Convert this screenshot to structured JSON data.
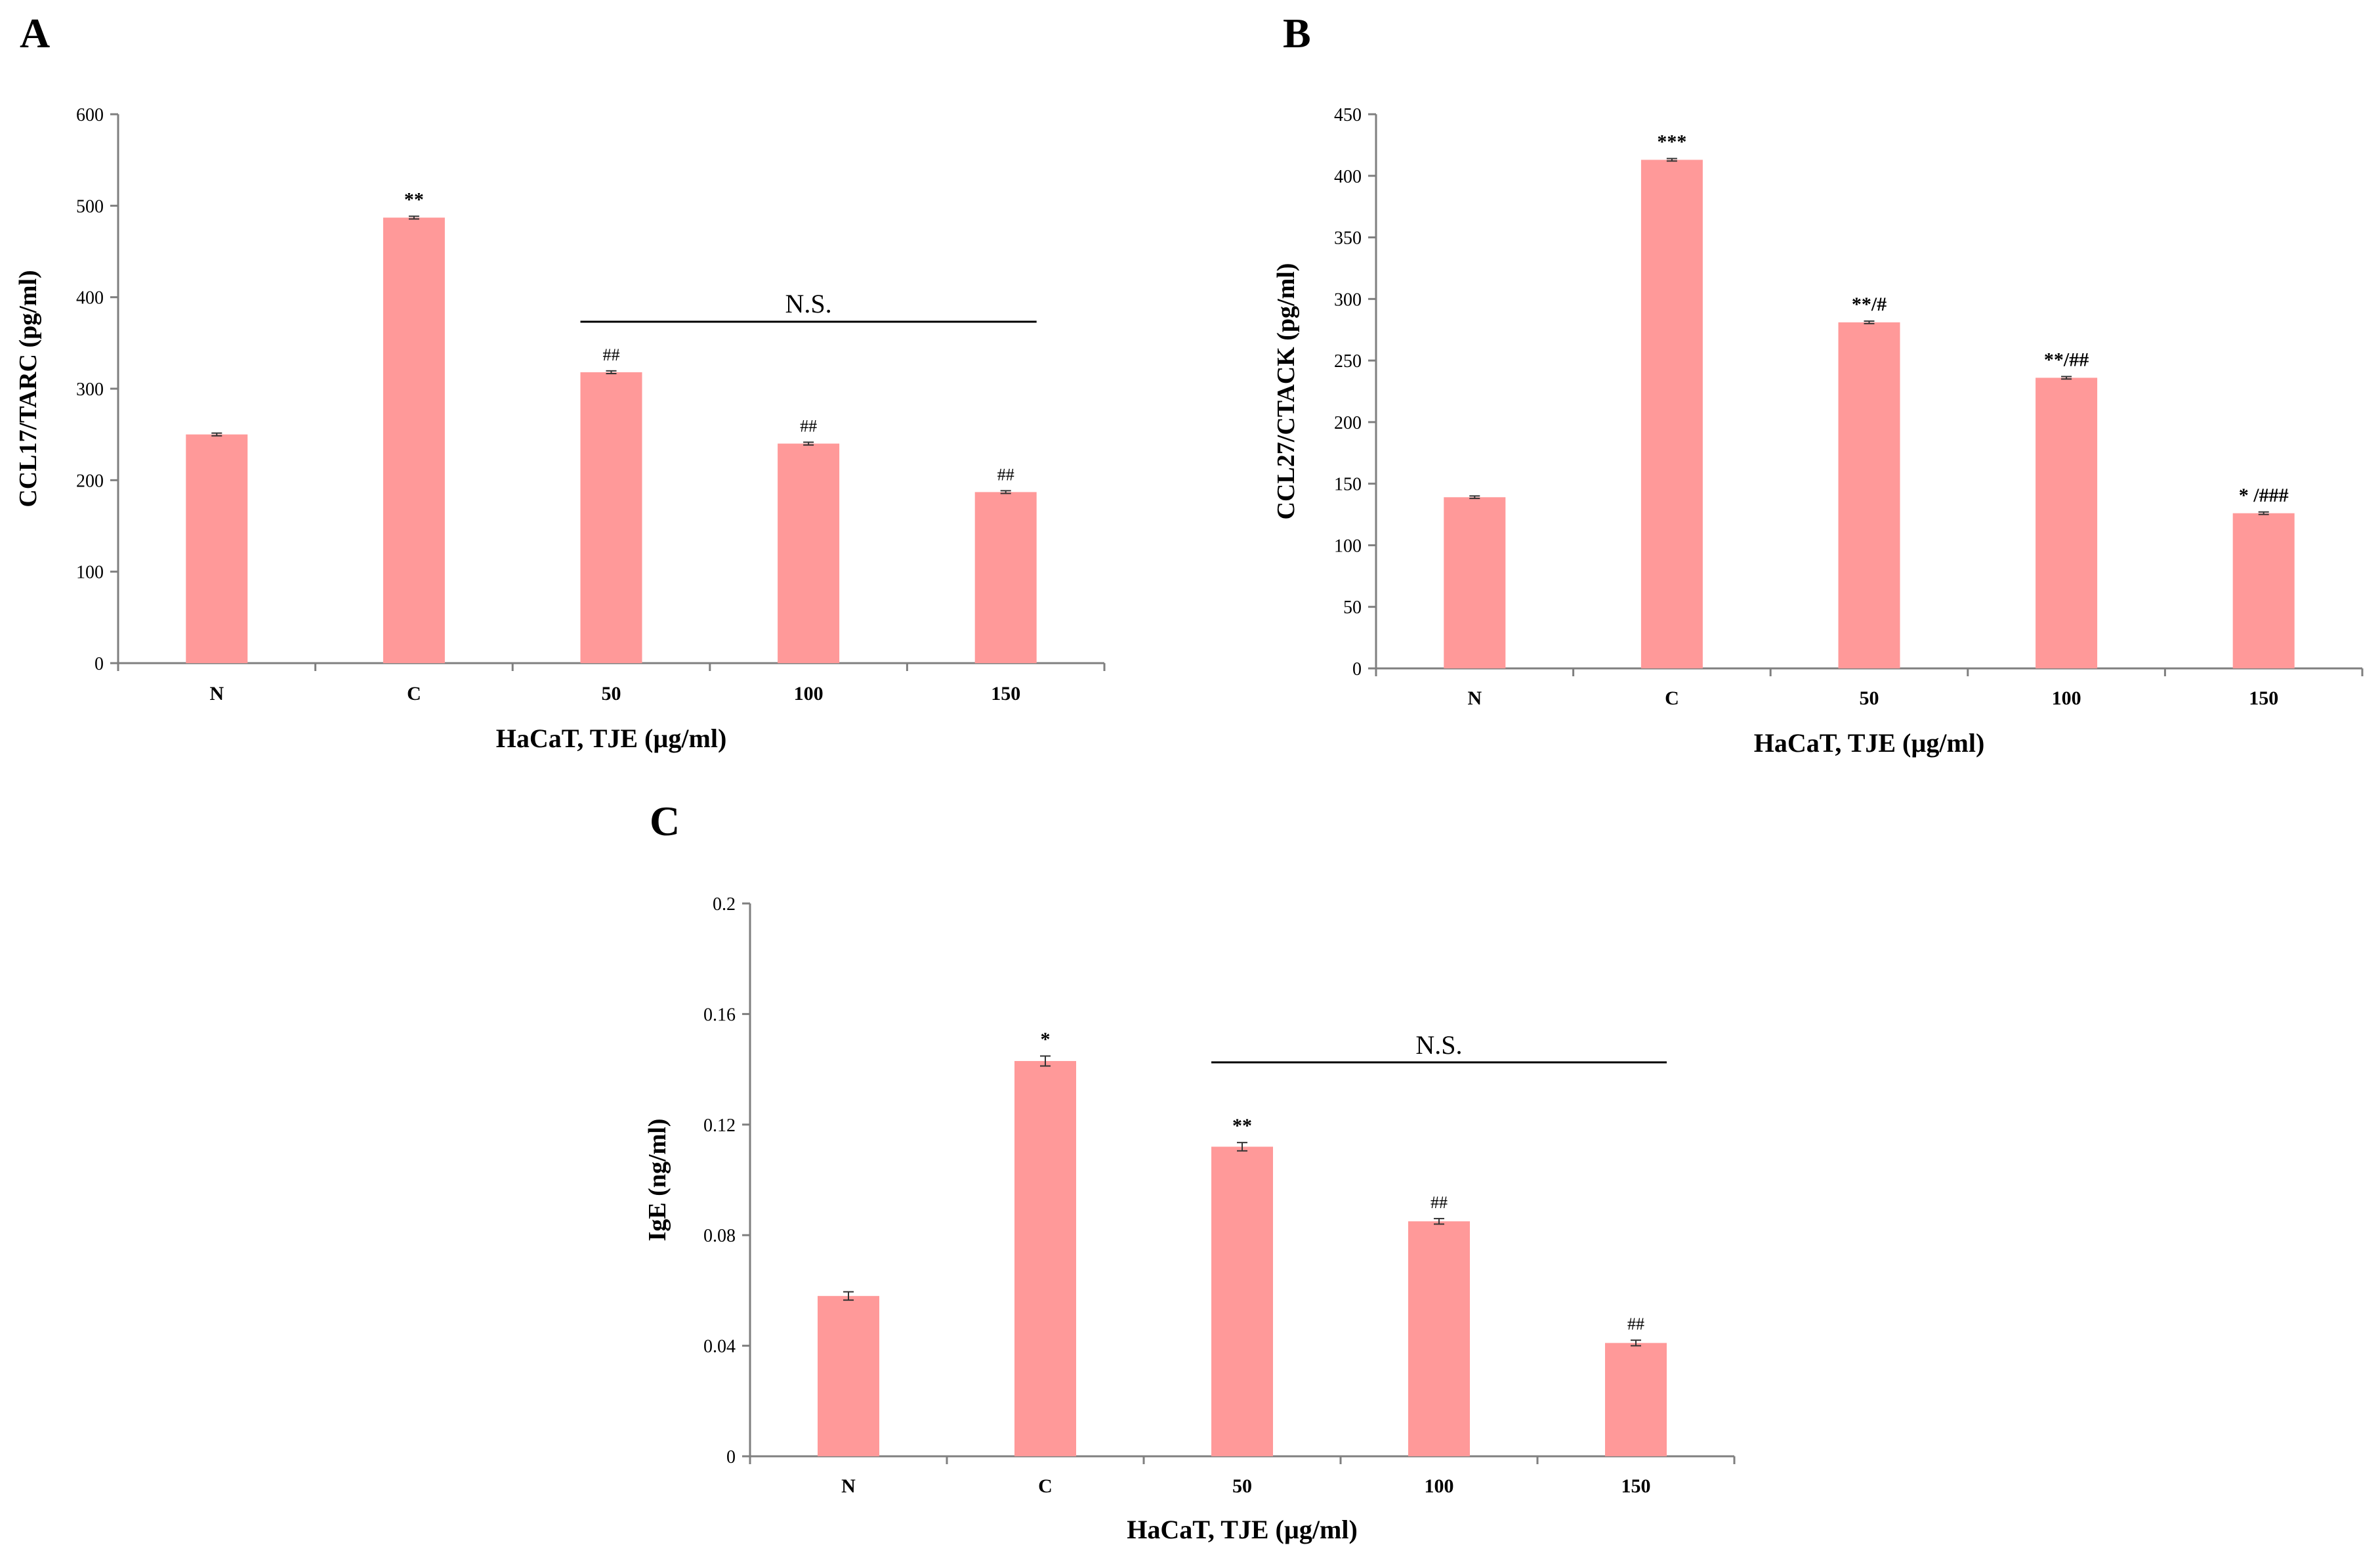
{
  "colors": {
    "bar": "#ff9999",
    "axis": "#7f7f7f",
    "text": "#000000"
  },
  "chart_data": [
    {
      "type": "bar",
      "panel": "A",
      "categories": [
        "N",
        "C",
        "50",
        "100",
        "150"
      ],
      "values": [
        250,
        487,
        318,
        240,
        187
      ],
      "errors": [
        1.5,
        1.5,
        1.5,
        1.5,
        1.5
      ],
      "annotations": [
        "",
        "**",
        "##",
        "##",
        "##"
      ],
      "ylabel": "CCL17/TARC (pg/ml)",
      "xlabel": "HaCaT, TJE (µg/ml)",
      "ylim": [
        0,
        600
      ],
      "yticks": [
        "0",
        "100",
        "200",
        "300",
        "400",
        "500",
        "600"
      ],
      "significance_bar": {
        "label": "N.S.",
        "from": "50",
        "to": "150"
      }
    },
    {
      "type": "bar",
      "panel": "B",
      "categories": [
        "N",
        "C",
        "50",
        "100",
        "150"
      ],
      "values": [
        139,
        413,
        281,
        236,
        126
      ],
      "errors": [
        1,
        1,
        1,
        1,
        1
      ],
      "annotations": [
        "",
        "***",
        "**/#",
        "**/##",
        "* /###"
      ],
      "ylabel": "CCL27/CTACK (pg/ml)",
      "xlabel": "HaCaT, TJE (µg/ml)",
      "ylim": [
        0,
        450
      ],
      "yticks": [
        "0",
        "50",
        "100",
        "150",
        "200",
        "250",
        "300",
        "350",
        "400",
        "450"
      ]
    },
    {
      "type": "bar",
      "panel": "C",
      "categories": [
        "N",
        "C",
        "50",
        "100",
        "150"
      ],
      "values": [
        0.058,
        0.143,
        0.112,
        0.085,
        0.041
      ],
      "errors": [
        0.0015,
        0.0018,
        0.0015,
        0.001,
        0.001
      ],
      "annotations": [
        "",
        "*",
        "**",
        "##",
        "##"
      ],
      "ylabel": "IgE (ng/ml)",
      "xlabel": "HaCaT, TJE (µg/ml)",
      "ylim": [
        0,
        0.2
      ],
      "yticks": [
        "0",
        "0.04",
        "0.08",
        "0.12",
        "0.16",
        "0.2"
      ],
      "significance_bar": {
        "label": "N.S.",
        "from": "50",
        "to": "150"
      }
    }
  ]
}
